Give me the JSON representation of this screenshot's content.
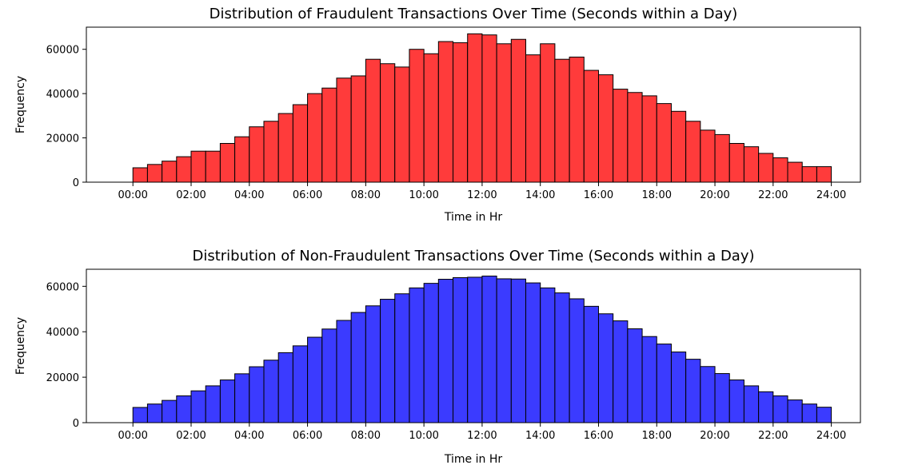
{
  "chart_data": [
    {
      "type": "bar",
      "title": "Distribution of Fraudulent Transactions Over Time (Seconds within a Day)",
      "xlabel": "Time in Hr",
      "ylabel": "Frequency",
      "color": "#ff3b3b",
      "xlim": [
        -1.6,
        25.0
      ],
      "ylim": [
        0,
        70000
      ],
      "xticks": [
        "00:00",
        "02:00",
        "04:00",
        "06:00",
        "08:00",
        "10:00",
        "12:00",
        "14:00",
        "16:00",
        "18:00",
        "20:00",
        "22:00",
        "24:00"
      ],
      "yticks": [
        0,
        20000,
        40000,
        60000
      ],
      "bin_width_hr": 0.5,
      "x": [
        0.25,
        0.75,
        1.25,
        1.75,
        2.25,
        2.75,
        3.25,
        3.75,
        4.25,
        4.75,
        5.25,
        5.75,
        6.25,
        6.75,
        7.25,
        7.75,
        8.25,
        8.75,
        9.25,
        9.75,
        10.25,
        10.75,
        11.25,
        11.75,
        12.25,
        12.75,
        13.25,
        13.75,
        14.25,
        14.75,
        15.25,
        15.75,
        16.25,
        16.75,
        17.25,
        17.75,
        18.25,
        18.75,
        19.25,
        19.75,
        20.25,
        20.75,
        21.25,
        21.75,
        22.25,
        22.75,
        23.25,
        23.75
      ],
      "values": [
        6500,
        8000,
        9500,
        11500,
        14000,
        14000,
        17500,
        20500,
        25000,
        27500,
        31000,
        35000,
        40000,
        42500,
        47000,
        48000,
        55500,
        53500,
        52000,
        60000,
        58000,
        63500,
        63000,
        67000,
        66500,
        62500,
        64500,
        57500,
        62500,
        55500,
        56500,
        50500,
        48500,
        42000,
        40500,
        39000,
        35500,
        32000,
        27500,
        23500,
        21500,
        17500,
        16000,
        13000,
        11000,
        9000,
        7000,
        7000
      ]
    },
    {
      "type": "bar",
      "title": "Distribution of Non-Fraudulent Transactions Over Time (Seconds within a Day)",
      "xlabel": "Time in Hr",
      "ylabel": "Frequency",
      "color": "#3b3bff",
      "xlim": [
        -1.6,
        25.0
      ],
      "ylim": [
        0,
        67500
      ],
      "xticks": [
        "00:00",
        "02:00",
        "04:00",
        "06:00",
        "08:00",
        "10:00",
        "12:00",
        "14:00",
        "16:00",
        "18:00",
        "20:00",
        "22:00",
        "24:00"
      ],
      "yticks": [
        0,
        20000,
        40000,
        60000
      ],
      "bin_width_hr": 0.5,
      "x": [
        0.25,
        0.75,
        1.25,
        1.75,
        2.25,
        2.75,
        3.25,
        3.75,
        4.25,
        4.75,
        5.25,
        5.75,
        6.25,
        6.75,
        7.25,
        7.75,
        8.25,
        8.75,
        9.25,
        9.75,
        10.25,
        10.75,
        11.25,
        11.75,
        12.25,
        12.75,
        13.25,
        13.75,
        14.25,
        14.75,
        15.25,
        15.75,
        16.25,
        16.75,
        17.25,
        17.75,
        18.25,
        18.75,
        19.25,
        19.75,
        20.25,
        20.75,
        21.25,
        21.75,
        22.25,
        22.75,
        23.25,
        23.75
      ],
      "values": [
        6700,
        8200,
        9800,
        11800,
        14000,
        16200,
        18800,
        21500,
        24600,
        27500,
        30800,
        33800,
        37600,
        41200,
        45000,
        48500,
        51400,
        54300,
        56700,
        59300,
        61300,
        63100,
        63800,
        64000,
        64500,
        63300,
        63200,
        61500,
        59300,
        57100,
        54500,
        51200,
        47900,
        44800,
        41300,
        37900,
        34600,
        31100,
        27900,
        24700,
        21600,
        18800,
        16200,
        13600,
        11800,
        10000,
        8200,
        6800
      ]
    }
  ]
}
